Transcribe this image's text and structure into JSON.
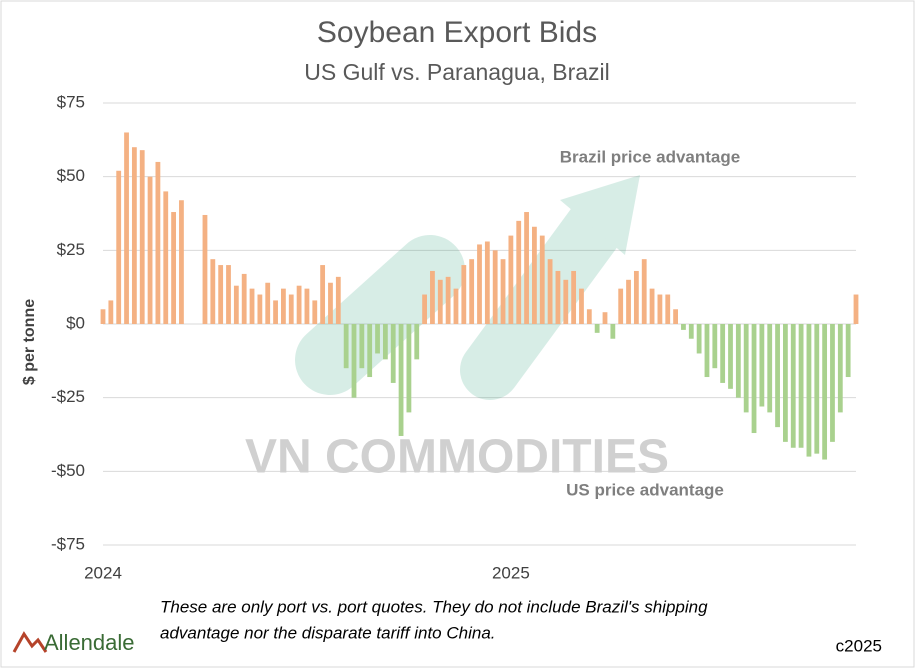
{
  "chart_data": {
    "type": "bar",
    "title": "Soybean Export Bids",
    "subtitle": "US Gulf vs. Paranagua, Brazil",
    "ylabel": "$ per tonne",
    "annotations": [
      "Brazil price advantage",
      "US price advantage"
    ],
    "watermark": "VN COMMODITIES",
    "footnote": [
      "These are only port vs. port quotes. They do not include Brazil's shipping",
      "advantage nor the disparate tariff into China."
    ],
    "logo": "Allendale",
    "credit": "c2025",
    "categories": [
      "2024",
      null,
      null,
      null,
      null,
      null,
      null,
      null,
      null,
      null,
      null,
      null,
      null,
      null,
      null,
      null,
      null,
      null,
      null,
      null,
      null,
      null,
      null,
      null,
      null,
      null,
      null,
      null,
      null,
      null,
      null,
      null,
      null,
      null,
      null,
      null,
      null,
      null,
      null,
      null,
      null,
      null,
      null,
      null,
      null,
      null,
      null,
      null,
      null,
      null,
      null,
      null,
      "2025",
      null,
      null,
      null,
      null,
      null,
      null,
      null,
      null,
      null,
      null,
      null,
      null,
      null,
      null,
      null,
      null,
      null,
      null,
      null,
      null,
      null,
      null,
      null,
      null,
      null,
      null,
      null,
      null,
      null,
      null,
      null,
      null,
      null,
      null,
      null,
      null,
      null,
      null,
      null,
      null,
      null,
      null,
      null,
      null
    ],
    "values": [
      5,
      8,
      52,
      65,
      60,
      59,
      50,
      55,
      45,
      38,
      42,
      null,
      null,
      37,
      22,
      20,
      20,
      13,
      17,
      12,
      10,
      14,
      8,
      12,
      10,
      13,
      12,
      8,
      20,
      14,
      16,
      -15,
      -25,
      -15,
      -18,
      -10,
      -12,
      -20,
      -38,
      -30,
      -12,
      10,
      18,
      15,
      16,
      12,
      20,
      22,
      27,
      28,
      25,
      22,
      30,
      35,
      38,
      33,
      30,
      22,
      18,
      15,
      18,
      12,
      5,
      -3,
      4,
      -5,
      12,
      15,
      18,
      22,
      12,
      10,
      10,
      5,
      -2,
      -5,
      -10,
      -18,
      -15,
      -20,
      -22,
      -25,
      -30,
      -37,
      -28,
      -30,
      -35,
      -40,
      -42,
      -42,
      -45,
      -44,
      -46,
      -40,
      -30,
      -18,
      10
    ],
    "positive_color": "#f4b183",
    "negative_color": "#a9d18e",
    "ylim": [
      -75,
      75
    ],
    "yticks": [
      {
        "value": -75,
        "label": "-$75"
      },
      {
        "value": -50,
        "label": "-$50"
      },
      {
        "value": -25,
        "label": "-$25"
      },
      {
        "value": 0,
        "label": "$0"
      },
      {
        "value": 25,
        "label": "$25"
      },
      {
        "value": 50,
        "label": "$50"
      },
      {
        "value": 75,
        "label": "$75"
      }
    ],
    "grid": true
  }
}
